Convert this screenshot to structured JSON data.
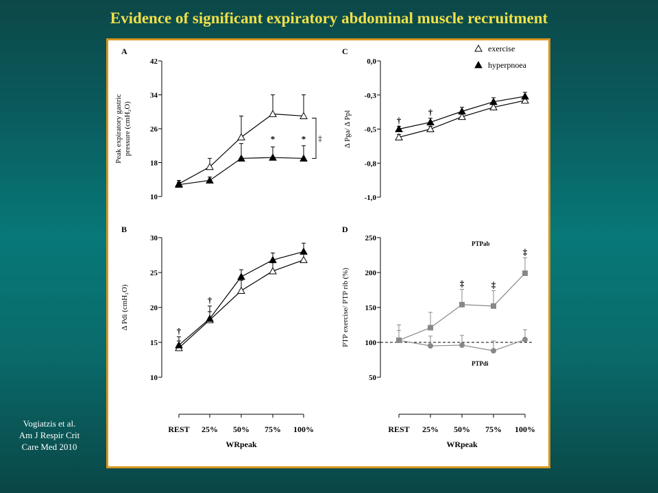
{
  "slide": {
    "title": "Evidence of significant expiratory abdominal muscle recruitment",
    "citation": [
      "Vogiatzis et al.",
      "Am J Respir Crit",
      "Care Med 2010"
    ]
  },
  "colors": {
    "title": "#f0e04a",
    "frame": "#d8961e",
    "exercise_marker": "#ffffff",
    "hyperpnoea_marker": "#000000",
    "ptp_series": "#888888"
  },
  "chart_data": [
    {
      "panel": "A",
      "type": "line",
      "categories": [
        "REST",
        "25%",
        "50%",
        "75%",
        "100%"
      ],
      "ylabel_lines": [
        "Peak expiratory  gastric",
        "pressure (cmH₂O)"
      ],
      "ylim": [
        10,
        42
      ],
      "yticks": [
        "10",
        "18",
        "26",
        "34",
        "42"
      ],
      "series": [
        {
          "name": "exercise",
          "marker": "open-triangle",
          "values": [
            13,
            17,
            24,
            29.5,
            29
          ],
          "errors": [
            0.8,
            2,
            5,
            4.5,
            5
          ]
        },
        {
          "name": "hyperpnoea",
          "marker": "filled-triangle",
          "values": [
            12.8,
            13.8,
            19,
            19.2,
            19
          ],
          "errors": [
            0.6,
            0.8,
            3.5,
            2.5,
            3
          ]
        }
      ],
      "annotations": [
        {
          "label": "*",
          "at": "75%"
        },
        {
          "label": "*",
          "at": "100%"
        },
        {
          "label": "‡",
          "type": "bracket",
          "at": "100%"
        }
      ]
    },
    {
      "panel": "C",
      "type": "line",
      "categories": [
        "REST",
        "25%",
        "50%",
        "75%",
        "100%"
      ],
      "ylabel": "Δ Pga/ Δ Ppl",
      "ylim": [
        -1.0,
        0.0
      ],
      "yticks": [
        "0,0",
        "-0,3",
        "-0,5",
        "-0,8",
        "-1,0"
      ],
      "legend": [
        "exercise",
        "hyperpnoea"
      ],
      "series": [
        {
          "name": "exercise",
          "marker": "open-triangle",
          "values": [
            -0.56,
            -0.5,
            -0.41,
            -0.34,
            -0.29
          ],
          "errors": [
            0.02,
            0.02,
            0.02,
            0.02,
            0.02
          ]
        },
        {
          "name": "hyperpnoea",
          "marker": "filled-triangle",
          "values": [
            -0.5,
            -0.45,
            -0.37,
            -0.3,
            -0.26
          ],
          "errors": [
            0.02,
            0.03,
            0.03,
            0.03,
            0.03
          ]
        }
      ],
      "annotations": [
        {
          "label": "†",
          "at": "REST"
        },
        {
          "label": "†",
          "at": "25%"
        }
      ]
    },
    {
      "panel": "B",
      "type": "line",
      "categories": [
        "REST",
        "25%",
        "50%",
        "75%",
        "100%"
      ],
      "xlabel": "WRpeak",
      "ylabel": "Δ Pdi (cmH₂O)",
      "ylim": [
        10,
        30
      ],
      "yticks": [
        "10",
        "15",
        "20",
        "25",
        "30"
      ],
      "series": [
        {
          "name": "exercise",
          "marker": "open-triangle",
          "values": [
            14.2,
            18.2,
            22.4,
            25.2,
            26.8
          ],
          "errors": [
            1,
            1.2,
            1.5,
            1.2,
            1.2
          ]
        },
        {
          "name": "hyperpnoea",
          "marker": "filled-triangle",
          "values": [
            14.6,
            18.4,
            24.4,
            26.8,
            28
          ],
          "errors": [
            1.2,
            1.8,
            1,
            1,
            1.2
          ]
        }
      ],
      "annotations": [
        {
          "label": "†",
          "at": "REST"
        },
        {
          "label": "†",
          "at": "25%"
        }
      ]
    },
    {
      "panel": "D",
      "type": "line",
      "categories": [
        "REST",
        "25%",
        "50%",
        "75%",
        "100%"
      ],
      "xlabel": "WRpeak",
      "ylabel": "PTP exercise/ PTP rib (%)",
      "ylim": [
        50,
        250
      ],
      "yticks": [
        "50",
        "100",
        "150",
        "200",
        "250"
      ],
      "reference_line": 100,
      "series": [
        {
          "name": "PTPab",
          "marker": "filled-square",
          "values": [
            103,
            121,
            154,
            152,
            199
          ],
          "errors": [
            22,
            22,
            22,
            22,
            22
          ]
        },
        {
          "name": "PTPdi",
          "marker": "filled-circle",
          "values": [
            103,
            95,
            96,
            88,
            104
          ],
          "errors": [
            14,
            14,
            14,
            14,
            14
          ]
        }
      ],
      "annotations": [
        {
          "label": "‡",
          "at": "50%"
        },
        {
          "label": "‡",
          "at": "75%"
        },
        {
          "label": "‡",
          "at": "100%"
        }
      ]
    }
  ]
}
